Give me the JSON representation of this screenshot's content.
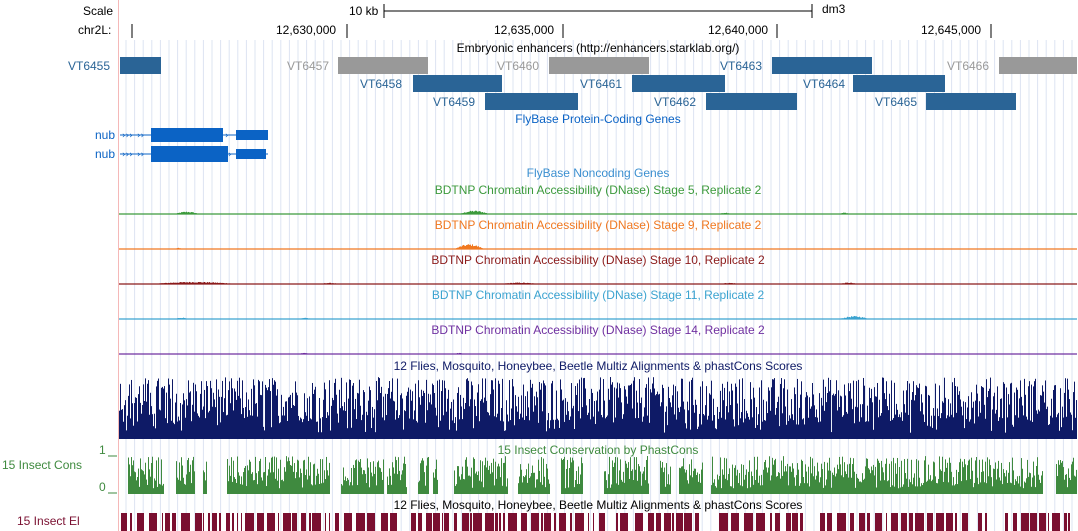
{
  "header": {
    "scale_label": "Scale",
    "chrom_label": "chr2L:",
    "scale_bar_text": "10 kb",
    "assembly": "dm3",
    "positions": [
      "12,630,000",
      "12,635,000",
      "12,640,000",
      "12,645,000"
    ]
  },
  "colors": {
    "enhancer_blue": "#2a6496",
    "enhancer_gray": "#999999",
    "gene_blue": "#0b63c5",
    "green": "#3c9a3c",
    "orange": "#f07820",
    "darkred": "#8b1a1a",
    "lightblue": "#3ba3d0",
    "purple": "#7030a0",
    "navy": "#0e1a66",
    "cons_green": "#3f8a3f",
    "element_red": "#7a0f30"
  },
  "tracks": {
    "enhancers_title": "Embryonic enhancers (http://enhancers.starklab.org/)",
    "enhancers": [
      {
        "name": "VT6455",
        "gray": false
      },
      {
        "name": "VT6457",
        "gray": true
      },
      {
        "name": "VT6458",
        "gray": false
      },
      {
        "name": "VT6459",
        "gray": false
      },
      {
        "name": "VT6460",
        "gray": true
      },
      {
        "name": "VT6461",
        "gray": false
      },
      {
        "name": "VT6462",
        "gray": false
      },
      {
        "name": "VT6463",
        "gray": false
      },
      {
        "name": "VT6464",
        "gray": false
      },
      {
        "name": "VT6465",
        "gray": false
      },
      {
        "name": "VT6466",
        "gray": true
      }
    ],
    "protein_genes_title": "FlyBase Protein-Coding Genes",
    "genes": [
      "nub",
      "nub"
    ],
    "noncoding_title": "FlyBase Noncoding Genes",
    "dnase": [
      {
        "title": "BDTNP Chromatin Accessibility (DNase) Stage 5, Replicate 2"
      },
      {
        "title": "BDTNP Chromatin Accessibility (DNase) Stage 9, Replicate 2"
      },
      {
        "title": "BDTNP Chromatin Accessibility (DNase) Stage 10, Replicate 2"
      },
      {
        "title": "BDTNP Chromatin Accessibility (DNase) Stage 11, Replicate 2"
      },
      {
        "title": "BDTNP Chromatin Accessibility (DNase) Stage 14, Replicate 2"
      }
    ],
    "multiz_title": "12 Flies, Mosquito, Honeybee, Beetle Multiz Alignments & phastCons Scores",
    "phastcons_title": "15 Insect Conservation by PhastCons",
    "cons_label": "15 Insect Cons",
    "cons_max": "1",
    "cons_min": "0",
    "multiz_title_2": "12 Flies, Mosquito, Honeybee, Beetle Multiz Alignments & phastCons Scores",
    "el_label": "15 Insect El"
  }
}
